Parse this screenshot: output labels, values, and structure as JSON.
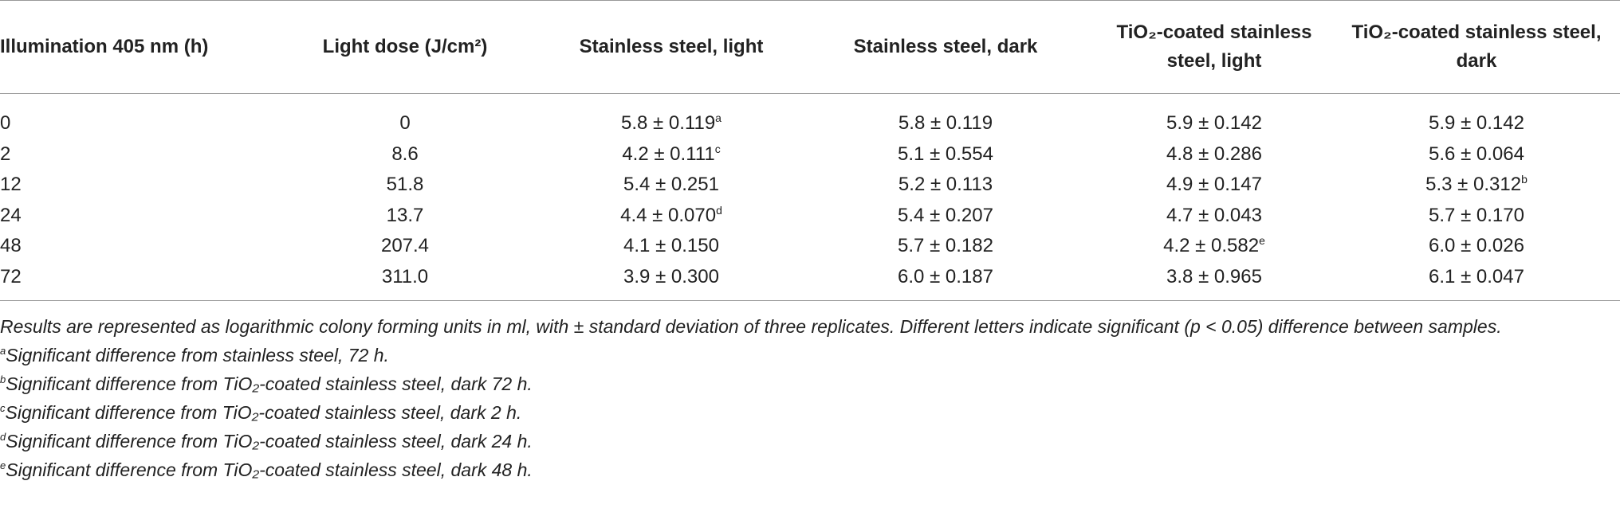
{
  "table": {
    "header": [
      "Illumination 405 nm (h)",
      "Light dose (J/cm²)",
      "Stainless steel, light",
      "Stainless steel, dark",
      "TiO₂-coated stainless steel, light",
      "TiO₂-coated stainless steel, dark"
    ],
    "rows": [
      [
        "0",
        "0",
        {
          "text": "5.8 ± 0.119",
          "note": "a"
        },
        "5.8 ± 0.119",
        "5.9 ± 0.142",
        "5.9 ± 0.142"
      ],
      [
        "2",
        "8.6",
        {
          "text": "4.2 ± 0.111",
          "note": "c"
        },
        "5.1 ± 0.554",
        "4.8 ± 0.286",
        "5.6 ± 0.064"
      ],
      [
        "12",
        "51.8",
        "5.4 ± 0.251",
        "5.2 ± 0.113",
        "4.9 ± 0.147",
        {
          "text": "5.3 ± 0.312",
          "note": "b"
        }
      ],
      [
        "24",
        "13.7",
        {
          "text": "4.4 ± 0.070",
          "note": "d"
        },
        "5.4 ± 0.207",
        "4.7 ± 0.043",
        "5.7 ± 0.170"
      ],
      [
        "48",
        "207.4",
        "4.1 ± 0.150",
        "5.7 ± 0.182",
        {
          "text": "4.2 ± 0.582",
          "note": "e"
        },
        "6.0 ± 0.026"
      ],
      [
        "72",
        "311.0",
        "3.9 ± 0.300",
        "6.0 ± 0.187",
        "3.8 ± 0.965",
        "6.1 ± 0.047"
      ]
    ]
  },
  "footnotes": [
    {
      "text": "Results are represented as logarithmic colony forming units in ml, with ± standard deviation of three replicates. Different letters indicate significant (p < 0.05) difference between samples."
    },
    {
      "mark": "a",
      "text": "Significant difference from stainless steel, 72 h."
    },
    {
      "mark": "b",
      "text": "Significant difference from TiO₂-coated stainless steel, dark 72 h."
    },
    {
      "mark": "c",
      "text": "Significant difference from TiO₂-coated stainless steel, dark 2 h."
    },
    {
      "mark": "d",
      "text": "Significant difference from TiO₂-coated stainless steel, dark 24 h."
    },
    {
      "mark": "e",
      "text": "Significant difference from TiO₂-coated stainless steel, dark 48 h."
    }
  ]
}
